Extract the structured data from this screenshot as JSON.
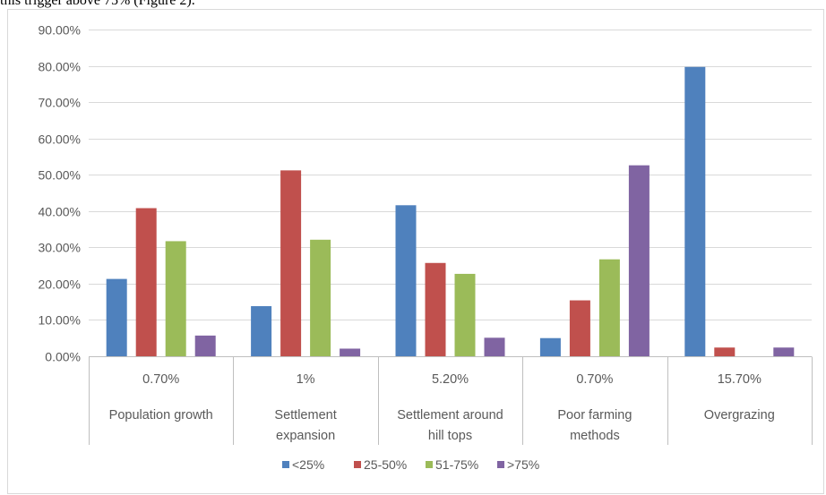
{
  "header_text": "this trigger above 75% (Figure 2).",
  "chart_data": {
    "type": "bar",
    "categories": [
      {
        "value_label": "0.70%",
        "label_lines": [
          "Population growth"
        ]
      },
      {
        "value_label": "1%",
        "label_lines": [
          "Settlement",
          "expansion"
        ]
      },
      {
        "value_label": "5.20%",
        "label_lines": [
          "Settlement around",
          "hill tops"
        ]
      },
      {
        "value_label": "0.70%",
        "label_lines": [
          "Poor farming",
          "methods"
        ]
      },
      {
        "value_label": "15.70%",
        "label_lines": [
          "Overgrazing"
        ]
      }
    ],
    "series": [
      {
        "name": "<25%",
        "color": "#4F81BD",
        "values": [
          21.3,
          13.8,
          41.6,
          5.0,
          79.7
        ]
      },
      {
        "name": "25-50%",
        "color": "#C0504D",
        "values": [
          40.8,
          51.2,
          25.7,
          15.4,
          2.4
        ]
      },
      {
        "name": "51-75%",
        "color": "#9BBB59",
        "values": [
          31.7,
          32.1,
          22.7,
          26.7,
          0
        ]
      },
      {
        "name": ">75%",
        "color": "#8064A2",
        "values": [
          5.7,
          2.1,
          5.1,
          52.6,
          2.4
        ]
      }
    ],
    "y_ticks": [
      "0.00%",
      "10.00%",
      "20.00%",
      "30.00%",
      "40.00%",
      "50.00%",
      "60.00%",
      "70.00%",
      "80.00%",
      "90.00%"
    ],
    "ylim": [
      0,
      90
    ],
    "grid": true,
    "legend_position": "bottom",
    "colors": {
      "grid": "#D9D9D9",
      "axis": "#BFBFBF",
      "text": "#595959"
    }
  }
}
